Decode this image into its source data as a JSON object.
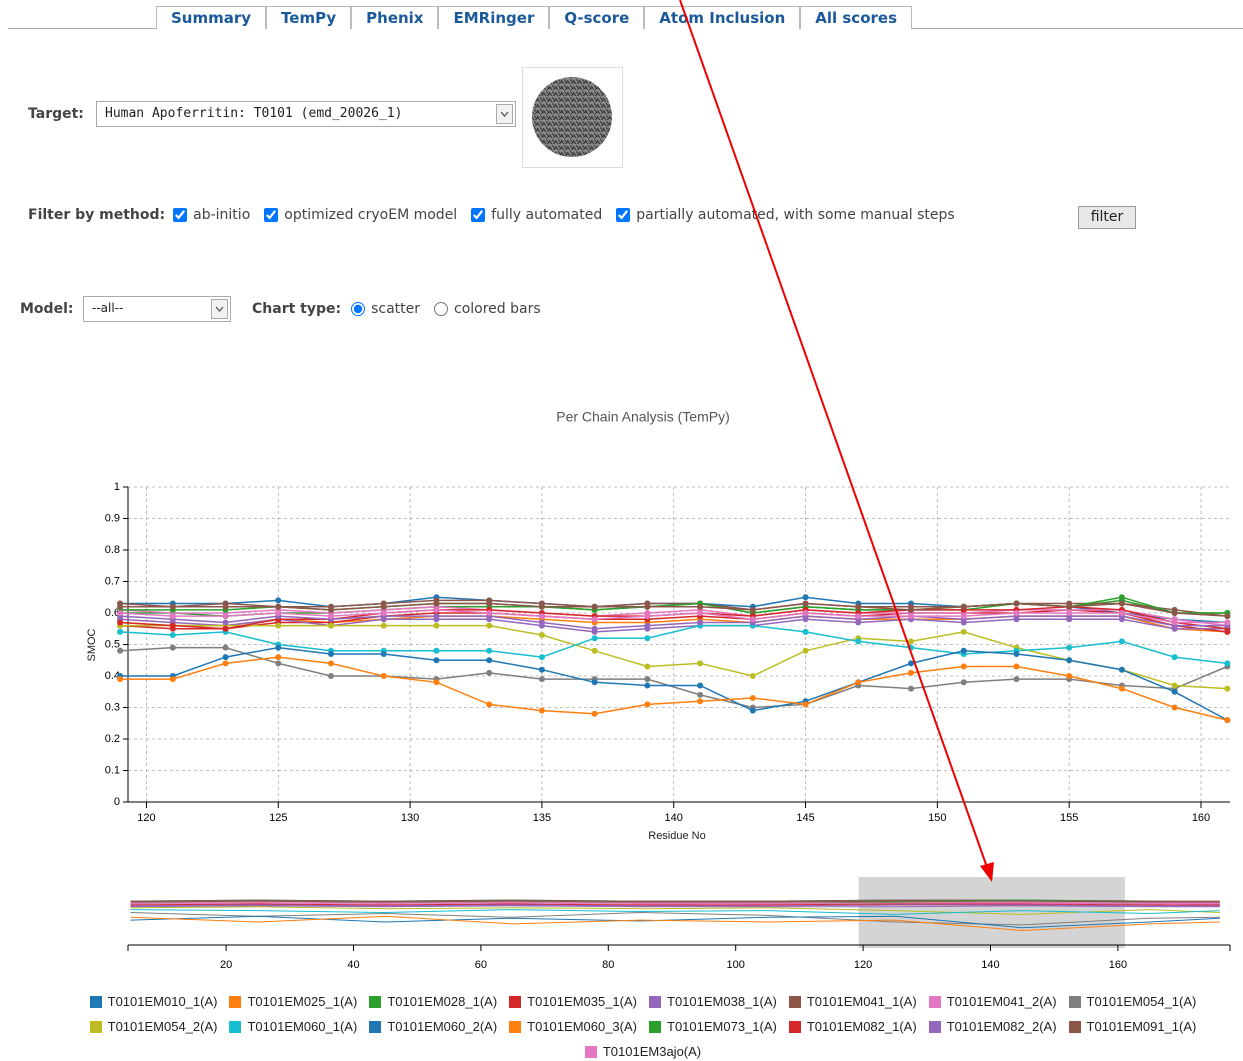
{
  "tabs": [
    "Summary",
    "TemPy",
    "Phenix",
    "EMRinger",
    "Q-score",
    "Atom Inclusion",
    "All scores"
  ],
  "active_tab": 1,
  "target": {
    "label": "Target:",
    "value": "Human Apoferritin: T0101 (emd_20026_1)"
  },
  "filter": {
    "label": "Filter by method:",
    "options": [
      {
        "label": "ab-initio",
        "checked": true
      },
      {
        "label": "optimized cryoEM model",
        "checked": true
      },
      {
        "label": "fully automated",
        "checked": true
      },
      {
        "label": "partially automated, with some manual steps",
        "checked": true
      }
    ],
    "button": "filter"
  },
  "model": {
    "label": "Model:",
    "value": "--all--"
  },
  "chart_type": {
    "label": "Chart type:",
    "options": [
      {
        "label": "scatter",
        "checked": true
      },
      {
        "label": "colored bars",
        "checked": false
      }
    ]
  },
  "chart_data": [
    {
      "type": "line",
      "title": "Per Chain Analysis (TemPy)",
      "x_label": "Residue No",
      "y_label": "SMOC",
      "x": [
        119,
        121,
        123,
        125,
        127,
        129,
        131,
        133,
        135,
        137,
        139,
        141,
        143,
        145,
        147,
        149,
        151,
        153,
        155,
        157,
        159,
        161
      ],
      "xlim": [
        119.3,
        161.1
      ],
      "xticks": [
        120,
        125,
        130,
        135,
        140,
        145,
        150,
        155,
        160
      ],
      "ylim": [
        0,
        1
      ],
      "yticks": [
        0,
        0.1,
        0.2,
        0.3,
        0.4,
        0.5,
        0.6,
        0.7,
        0.8,
        0.9,
        1
      ],
      "grid": true,
      "series": [
        {
          "name": "T0101EM010_1(A)",
          "color": "#1f77b4",
          "values": [
            0.63,
            0.63,
            0.63,
            0.64,
            0.62,
            0.63,
            0.65,
            0.64,
            0.63,
            0.62,
            0.63,
            0.63,
            0.62,
            0.65,
            0.63,
            0.63,
            0.62,
            0.63,
            0.62,
            0.6,
            0.58,
            0.57
          ]
        },
        {
          "name": "T0101EM025_1(A)",
          "color": "#ff7f0e",
          "values": [
            0.57,
            0.56,
            0.56,
            0.58,
            0.57,
            0.58,
            0.59,
            0.59,
            0.58,
            0.57,
            0.57,
            0.58,
            0.57,
            0.59,
            0.58,
            0.58,
            0.58,
            0.59,
            0.59,
            0.59,
            0.55,
            0.54
          ]
        },
        {
          "name": "T0101EM028_1(A)",
          "color": "#2ca02c",
          "values": [
            0.6,
            0.6,
            0.59,
            0.6,
            0.6,
            0.61,
            0.62,
            0.62,
            0.62,
            0.61,
            0.62,
            0.63,
            0.6,
            0.62,
            0.61,
            0.61,
            0.61,
            0.63,
            0.62,
            0.64,
            0.6,
            0.6
          ]
        },
        {
          "name": "T0101EM035_1(A)",
          "color": "#d62728",
          "values": [
            0.56,
            0.55,
            0.55,
            0.57,
            0.57,
            0.59,
            0.6,
            0.6,
            0.59,
            0.58,
            0.58,
            0.59,
            0.58,
            0.6,
            0.59,
            0.6,
            0.6,
            0.6,
            0.61,
            0.6,
            0.56,
            0.54
          ]
        },
        {
          "name": "T0101EM038_1(A)",
          "color": "#9467bd",
          "values": [
            0.58,
            0.57,
            0.56,
            0.58,
            0.56,
            0.58,
            0.58,
            0.58,
            0.56,
            0.54,
            0.55,
            0.56,
            0.56,
            0.58,
            0.57,
            0.58,
            0.57,
            0.58,
            0.58,
            0.58,
            0.55,
            0.55
          ]
        },
        {
          "name": "T0101EM041_1(A)",
          "color": "#8c564b",
          "values": [
            0.63,
            0.62,
            0.63,
            0.62,
            0.62,
            0.63,
            0.64,
            0.64,
            0.63,
            0.62,
            0.63,
            0.63,
            0.61,
            0.63,
            0.62,
            0.62,
            0.62,
            0.63,
            0.63,
            0.63,
            0.61,
            0.59
          ]
        },
        {
          "name": "T0101EM041_2(A)",
          "color": "#e377c2",
          "values": [
            0.61,
            0.6,
            0.6,
            0.61,
            0.6,
            0.61,
            0.62,
            0.61,
            0.6,
            0.59,
            0.6,
            0.61,
            0.59,
            0.61,
            0.6,
            0.6,
            0.6,
            0.61,
            0.61,
            0.61,
            0.58,
            0.56
          ]
        },
        {
          "name": "T0101EM054_1(A)",
          "color": "#7f7f7f",
          "values": [
            0.48,
            0.49,
            0.49,
            0.44,
            0.4,
            0.4,
            0.39,
            0.41,
            0.39,
            0.39,
            0.39,
            0.34,
            0.3,
            0.31,
            0.37,
            0.36,
            0.38,
            0.39,
            0.39,
            0.37,
            0.36,
            0.43
          ]
        },
        {
          "name": "T0101EM054_2(A)",
          "color": "#bcbd22",
          "values": [
            0.56,
            0.56,
            0.56,
            0.56,
            0.56,
            0.56,
            0.56,
            0.56,
            0.53,
            0.48,
            0.43,
            0.44,
            0.4,
            0.48,
            0.52,
            0.51,
            0.54,
            0.49,
            0.45,
            0.42,
            0.37,
            0.36
          ]
        },
        {
          "name": "T0101EM060_1(A)",
          "color": "#17becf",
          "values": [
            0.54,
            0.53,
            0.54,
            0.5,
            0.48,
            0.48,
            0.48,
            0.48,
            0.46,
            0.52,
            0.52,
            0.56,
            0.56,
            0.54,
            0.51,
            0.49,
            0.47,
            0.48,
            0.49,
            0.51,
            0.46,
            0.44
          ]
        },
        {
          "name": "T0101EM060_2(A)",
          "color": "#1f77b4",
          "values": [
            0.4,
            0.4,
            0.46,
            0.49,
            0.47,
            0.47,
            0.45,
            0.45,
            0.42,
            0.38,
            0.37,
            0.37,
            0.29,
            0.32,
            0.38,
            0.44,
            0.48,
            0.47,
            0.45,
            0.42,
            0.35,
            0.26
          ]
        },
        {
          "name": "T0101EM060_3(A)",
          "color": "#ff7f0e",
          "values": [
            0.39,
            0.39,
            0.44,
            0.46,
            0.44,
            0.4,
            0.38,
            0.31,
            0.29,
            0.28,
            0.31,
            0.32,
            0.33,
            0.31,
            0.38,
            0.41,
            0.43,
            0.43,
            0.4,
            0.36,
            0.3,
            0.26
          ]
        },
        {
          "name": "T0101EM073_1(A)",
          "color": "#2ca02c",
          "values": [
            0.61,
            0.61,
            0.61,
            0.62,
            0.61,
            0.62,
            0.63,
            0.63,
            0.62,
            0.61,
            0.62,
            0.63,
            0.6,
            0.62,
            0.61,
            0.61,
            0.62,
            0.63,
            0.62,
            0.65,
            0.6,
            0.6
          ]
        },
        {
          "name": "T0101EM082_1(A)",
          "color": "#d62728",
          "values": [
            0.57,
            0.56,
            0.55,
            0.58,
            0.58,
            0.6,
            0.61,
            0.61,
            0.6,
            0.59,
            0.59,
            0.6,
            0.59,
            0.61,
            0.6,
            0.61,
            0.61,
            0.61,
            0.62,
            0.61,
            0.57,
            0.55
          ]
        },
        {
          "name": "T0101EM082_2(A)",
          "color": "#9467bd",
          "values": [
            0.59,
            0.58,
            0.57,
            0.59,
            0.58,
            0.59,
            0.59,
            0.59,
            0.57,
            0.55,
            0.56,
            0.57,
            0.57,
            0.59,
            0.58,
            0.59,
            0.58,
            0.59,
            0.59,
            0.59,
            0.56,
            0.56
          ]
        },
        {
          "name": "T0101EM091_1(A)",
          "color": "#8c564b",
          "values": [
            0.62,
            0.62,
            0.62,
            0.62,
            0.61,
            0.62,
            0.63,
            0.63,
            0.62,
            0.62,
            0.62,
            0.62,
            0.61,
            0.63,
            0.62,
            0.61,
            0.62,
            0.63,
            0.62,
            0.63,
            0.6,
            0.59
          ]
        },
        {
          "name": "T0101EM3ajo(A)",
          "color": "#e377c2",
          "values": [
            0.6,
            0.59,
            0.59,
            0.6,
            0.59,
            0.6,
            0.61,
            0.6,
            0.59,
            0.58,
            0.59,
            0.6,
            0.58,
            0.6,
            0.59,
            0.59,
            0.59,
            0.6,
            0.6,
            0.6,
            0.57,
            0.57
          ]
        }
      ]
    },
    {
      "type": "line",
      "x": [
        5,
        25,
        45,
        65,
        85,
        105,
        125,
        145,
        165,
        176
      ],
      "xlim": [
        4.6,
        177.6
      ],
      "xticks": [
        20,
        40,
        60,
        80,
        100,
        120,
        140,
        160
      ],
      "ylim": [
        0,
        1
      ],
      "brush": [
        119.3,
        161.1
      ],
      "series": [
        {
          "values": [
            0.62,
            0.63,
            0.62,
            0.63,
            0.62,
            0.62,
            0.63,
            0.63,
            0.62,
            0.61
          ]
        },
        {
          "values": [
            0.58,
            0.59,
            0.57,
            0.58,
            0.58,
            0.57,
            0.58,
            0.58,
            0.57,
            0.58
          ]
        },
        {
          "values": [
            0.6,
            0.61,
            0.61,
            0.6,
            0.61,
            0.6,
            0.61,
            0.62,
            0.61,
            0.6
          ]
        },
        {
          "values": [
            0.57,
            0.58,
            0.57,
            0.59,
            0.57,
            0.58,
            0.59,
            0.59,
            0.58,
            0.57
          ]
        },
        {
          "values": [
            0.56,
            0.57,
            0.56,
            0.57,
            0.56,
            0.56,
            0.56,
            0.57,
            0.56,
            0.56
          ]
        },
        {
          "values": [
            0.62,
            0.63,
            0.62,
            0.63,
            0.62,
            0.62,
            0.63,
            0.63,
            0.62,
            0.62
          ]
        },
        {
          "values": [
            0.6,
            0.61,
            0.6,
            0.61,
            0.6,
            0.6,
            0.6,
            0.61,
            0.6,
            0.6
          ]
        },
        {
          "values": [
            0.5,
            0.46,
            0.49,
            0.45,
            0.5,
            0.47,
            0.4,
            0.37,
            0.44,
            0.45
          ]
        },
        {
          "values": [
            0.55,
            0.56,
            0.54,
            0.55,
            0.54,
            0.55,
            0.52,
            0.48,
            0.53,
            0.5
          ]
        },
        {
          "values": [
            0.53,
            0.52,
            0.5,
            0.53,
            0.51,
            0.52,
            0.48,
            0.52,
            0.49,
            0.52
          ]
        },
        {
          "values": [
            0.42,
            0.46,
            0.4,
            0.44,
            0.41,
            0.45,
            0.46,
            0.34,
            0.4,
            0.44
          ]
        },
        {
          "values": [
            0.45,
            0.4,
            0.46,
            0.38,
            0.42,
            0.4,
            0.42,
            0.31,
            0.38,
            0.4
          ]
        },
        {
          "values": [
            0.61,
            0.62,
            0.61,
            0.62,
            0.61,
            0.61,
            0.62,
            0.63,
            0.61,
            0.61
          ]
        },
        {
          "values": [
            0.58,
            0.59,
            0.58,
            0.59,
            0.58,
            0.59,
            0.6,
            0.6,
            0.59,
            0.58
          ]
        },
        {
          "values": [
            0.57,
            0.58,
            0.57,
            0.58,
            0.57,
            0.57,
            0.58,
            0.58,
            0.57,
            0.57
          ]
        },
        {
          "values": [
            0.61,
            0.62,
            0.61,
            0.62,
            0.61,
            0.61,
            0.62,
            0.62,
            0.61,
            0.61
          ]
        },
        {
          "values": [
            0.59,
            0.6,
            0.59,
            0.6,
            0.59,
            0.59,
            0.6,
            0.6,
            0.59,
            0.59
          ]
        }
      ]
    }
  ]
}
